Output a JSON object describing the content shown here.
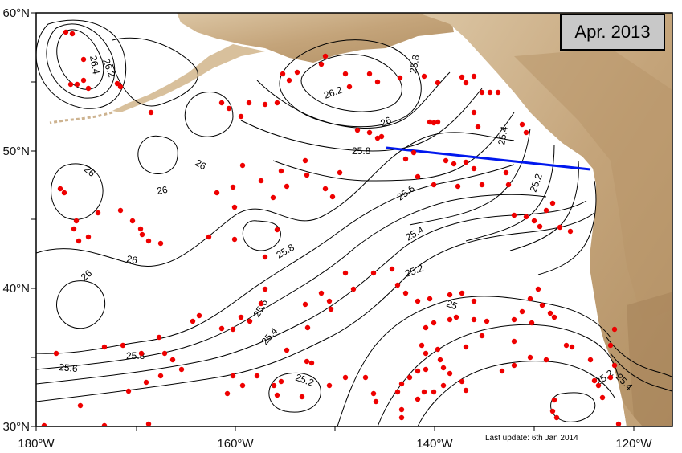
{
  "map": {
    "date_label": "Apr. 2013",
    "last_update": "Last update: 6th Jan 2014",
    "lon_ticks": [
      "180°W",
      "160°W",
      "140°W",
      "120°W"
    ],
    "lat_ticks": [
      "60°N",
      "50°N",
      "40°N",
      "30°N"
    ],
    "contour_labels": [
      "26.2",
      "26.4",
      "26.2",
      "25.8",
      "26",
      "25.8",
      "26",
      "26",
      "26",
      "26",
      "25.6",
      "25.4",
      "25.4",
      "25.8",
      "26",
      "25.2",
      "25.2",
      "25",
      "25.6",
      "25.4",
      "25.8",
      "25.6",
      "25.2",
      "25.2",
      "25.4"
    ],
    "colors": {
      "land": "#c9ac86",
      "land_dark": "#a88658",
      "float_dot": "#ee0000",
      "section_line": "#0018ee",
      "contour": "#000000"
    },
    "marker_icon": "float-dot-icon"
  }
}
